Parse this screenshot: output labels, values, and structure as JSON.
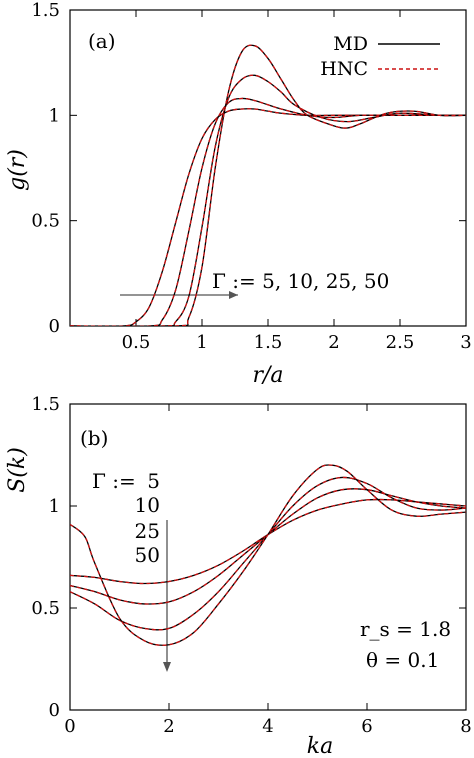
{
  "chart_data": [
    {
      "type": "line",
      "panel_label": "(a)",
      "xlabel": "r/a",
      "ylabel": "g(r)",
      "xlim": [
        0,
        3
      ],
      "ylim": [
        0,
        1.5
      ],
      "xticks": [
        "0.5",
        "1",
        "1.5",
        "2",
        "2.5",
        "3"
      ],
      "yticks": [
        "0",
        "0.5",
        "1",
        "1.5"
      ],
      "legend": {
        "position": "top-right",
        "entries": [
          {
            "name": "MD",
            "color": "#000000",
            "style": "solid"
          },
          {
            "name": "HNC",
            "color": "#cc1111",
            "style": "dashed"
          }
        ]
      },
      "annotation": "Γ := 5,  10,  25,  50",
      "series": [
        {
          "gamma": 5,
          "x": [
            0.0,
            0.4,
            0.5,
            0.6,
            0.7,
            0.8,
            0.9,
            1.0,
            1.1,
            1.2,
            1.3,
            1.4,
            1.5,
            1.6,
            1.8,
            2.0,
            2.2,
            2.5,
            2.8,
            3.0
          ],
          "y": [
            0,
            0.0,
            0.02,
            0.09,
            0.26,
            0.49,
            0.72,
            0.89,
            0.98,
            1.02,
            1.03,
            1.03,
            1.02,
            1.01,
            1.0,
            1.0,
            1.0,
            1.0,
            1.0,
            1.0
          ]
        },
        {
          "gamma": 10,
          "x": [
            0.0,
            0.6,
            0.7,
            0.8,
            0.9,
            1.0,
            1.1,
            1.2,
            1.3,
            1.4,
            1.5,
            1.6,
            1.8,
            2.0,
            2.2,
            2.5,
            2.8,
            3.0
          ],
          "y": [
            0,
            0.0,
            0.03,
            0.17,
            0.45,
            0.75,
            0.96,
            1.06,
            1.08,
            1.07,
            1.05,
            1.03,
            1.0,
            0.99,
            1.0,
            1.0,
            1.0,
            1.0
          ]
        },
        {
          "gamma": 25,
          "x": [
            0.0,
            0.7,
            0.8,
            0.9,
            1.0,
            1.1,
            1.2,
            1.3,
            1.4,
            1.5,
            1.6,
            1.7,
            1.9,
            2.1,
            2.3,
            2.5,
            2.8,
            3.0
          ],
          "y": [
            0,
            0.0,
            0.02,
            0.14,
            0.47,
            0.85,
            1.08,
            1.17,
            1.19,
            1.16,
            1.11,
            1.05,
            0.99,
            0.97,
            0.99,
            1.01,
            1.0,
            1.0
          ]
        },
        {
          "gamma": 50,
          "x": [
            0.0,
            0.8,
            0.9,
            1.0,
            1.1,
            1.2,
            1.3,
            1.4,
            1.5,
            1.6,
            1.7,
            1.8,
            2.0,
            2.1,
            2.2,
            2.4,
            2.6,
            2.8,
            3.0
          ],
          "y": [
            0,
            0.0,
            0.04,
            0.28,
            0.75,
            1.11,
            1.3,
            1.33,
            1.27,
            1.17,
            1.07,
            1.0,
            0.95,
            0.94,
            0.96,
            1.01,
            1.02,
            1.0,
            1.0
          ]
        }
      ]
    },
    {
      "type": "line",
      "panel_label": "(b)",
      "xlabel": "ka",
      "ylabel": "S(k)",
      "xlim": [
        0,
        8
      ],
      "ylim": [
        0,
        1.5
      ],
      "xticks": [
        "0",
        "2",
        "4",
        "6",
        "8"
      ],
      "yticks": [
        "0",
        "0.5",
        "1",
        "1.5"
      ],
      "gamma_labels": [
        "Γ :=",
        "5",
        "10",
        "25",
        "50"
      ],
      "annotations": [
        "r_s = 1.8",
        "θ = 0.1"
      ],
      "series": [
        {
          "gamma": 5,
          "x": [
            0.0,
            0.5,
            1.0,
            1.5,
            2.0,
            2.5,
            3.0,
            3.5,
            4.0,
            4.5,
            5.0,
            5.5,
            6.0,
            6.5,
            7.0,
            7.5,
            8.0
          ],
          "y": [
            0.66,
            0.65,
            0.63,
            0.62,
            0.63,
            0.66,
            0.71,
            0.78,
            0.86,
            0.93,
            0.98,
            1.01,
            1.03,
            1.03,
            1.02,
            1.01,
            1.0
          ]
        },
        {
          "gamma": 10,
          "x": [
            0.0,
            0.5,
            1.0,
            1.5,
            2.0,
            2.5,
            3.0,
            3.5,
            4.0,
            4.5,
            5.0,
            5.5,
            6.0,
            6.5,
            7.0,
            7.5,
            8.0
          ],
          "y": [
            0.61,
            0.58,
            0.54,
            0.52,
            0.53,
            0.58,
            0.66,
            0.76,
            0.86,
            0.96,
            1.04,
            1.08,
            1.08,
            1.05,
            1.02,
            1.0,
            0.99
          ]
        },
        {
          "gamma": 25,
          "x": [
            0.0,
            0.5,
            1.0,
            1.5,
            2.0,
            2.5,
            3.0,
            3.5,
            4.0,
            4.5,
            5.0,
            5.5,
            6.0,
            6.5,
            7.0,
            7.5,
            8.0
          ],
          "y": [
            0.58,
            0.52,
            0.44,
            0.4,
            0.4,
            0.47,
            0.58,
            0.72,
            0.86,
            1.0,
            1.1,
            1.14,
            1.11,
            1.04,
            0.99,
            0.98,
            0.99
          ]
        },
        {
          "gamma": 50,
          "x": [
            0.0,
            0.3,
            0.5,
            1.0,
            1.5,
            2.0,
            2.5,
            3.0,
            3.5,
            4.0,
            4.5,
            5.0,
            5.3,
            5.6,
            6.0,
            6.5,
            7.0,
            7.5,
            8.0
          ],
          "y": [
            0.91,
            0.85,
            0.72,
            0.45,
            0.34,
            0.32,
            0.38,
            0.52,
            0.68,
            0.86,
            1.05,
            1.18,
            1.2,
            1.17,
            1.08,
            0.98,
            0.95,
            0.96,
            0.97
          ]
        }
      ]
    }
  ]
}
